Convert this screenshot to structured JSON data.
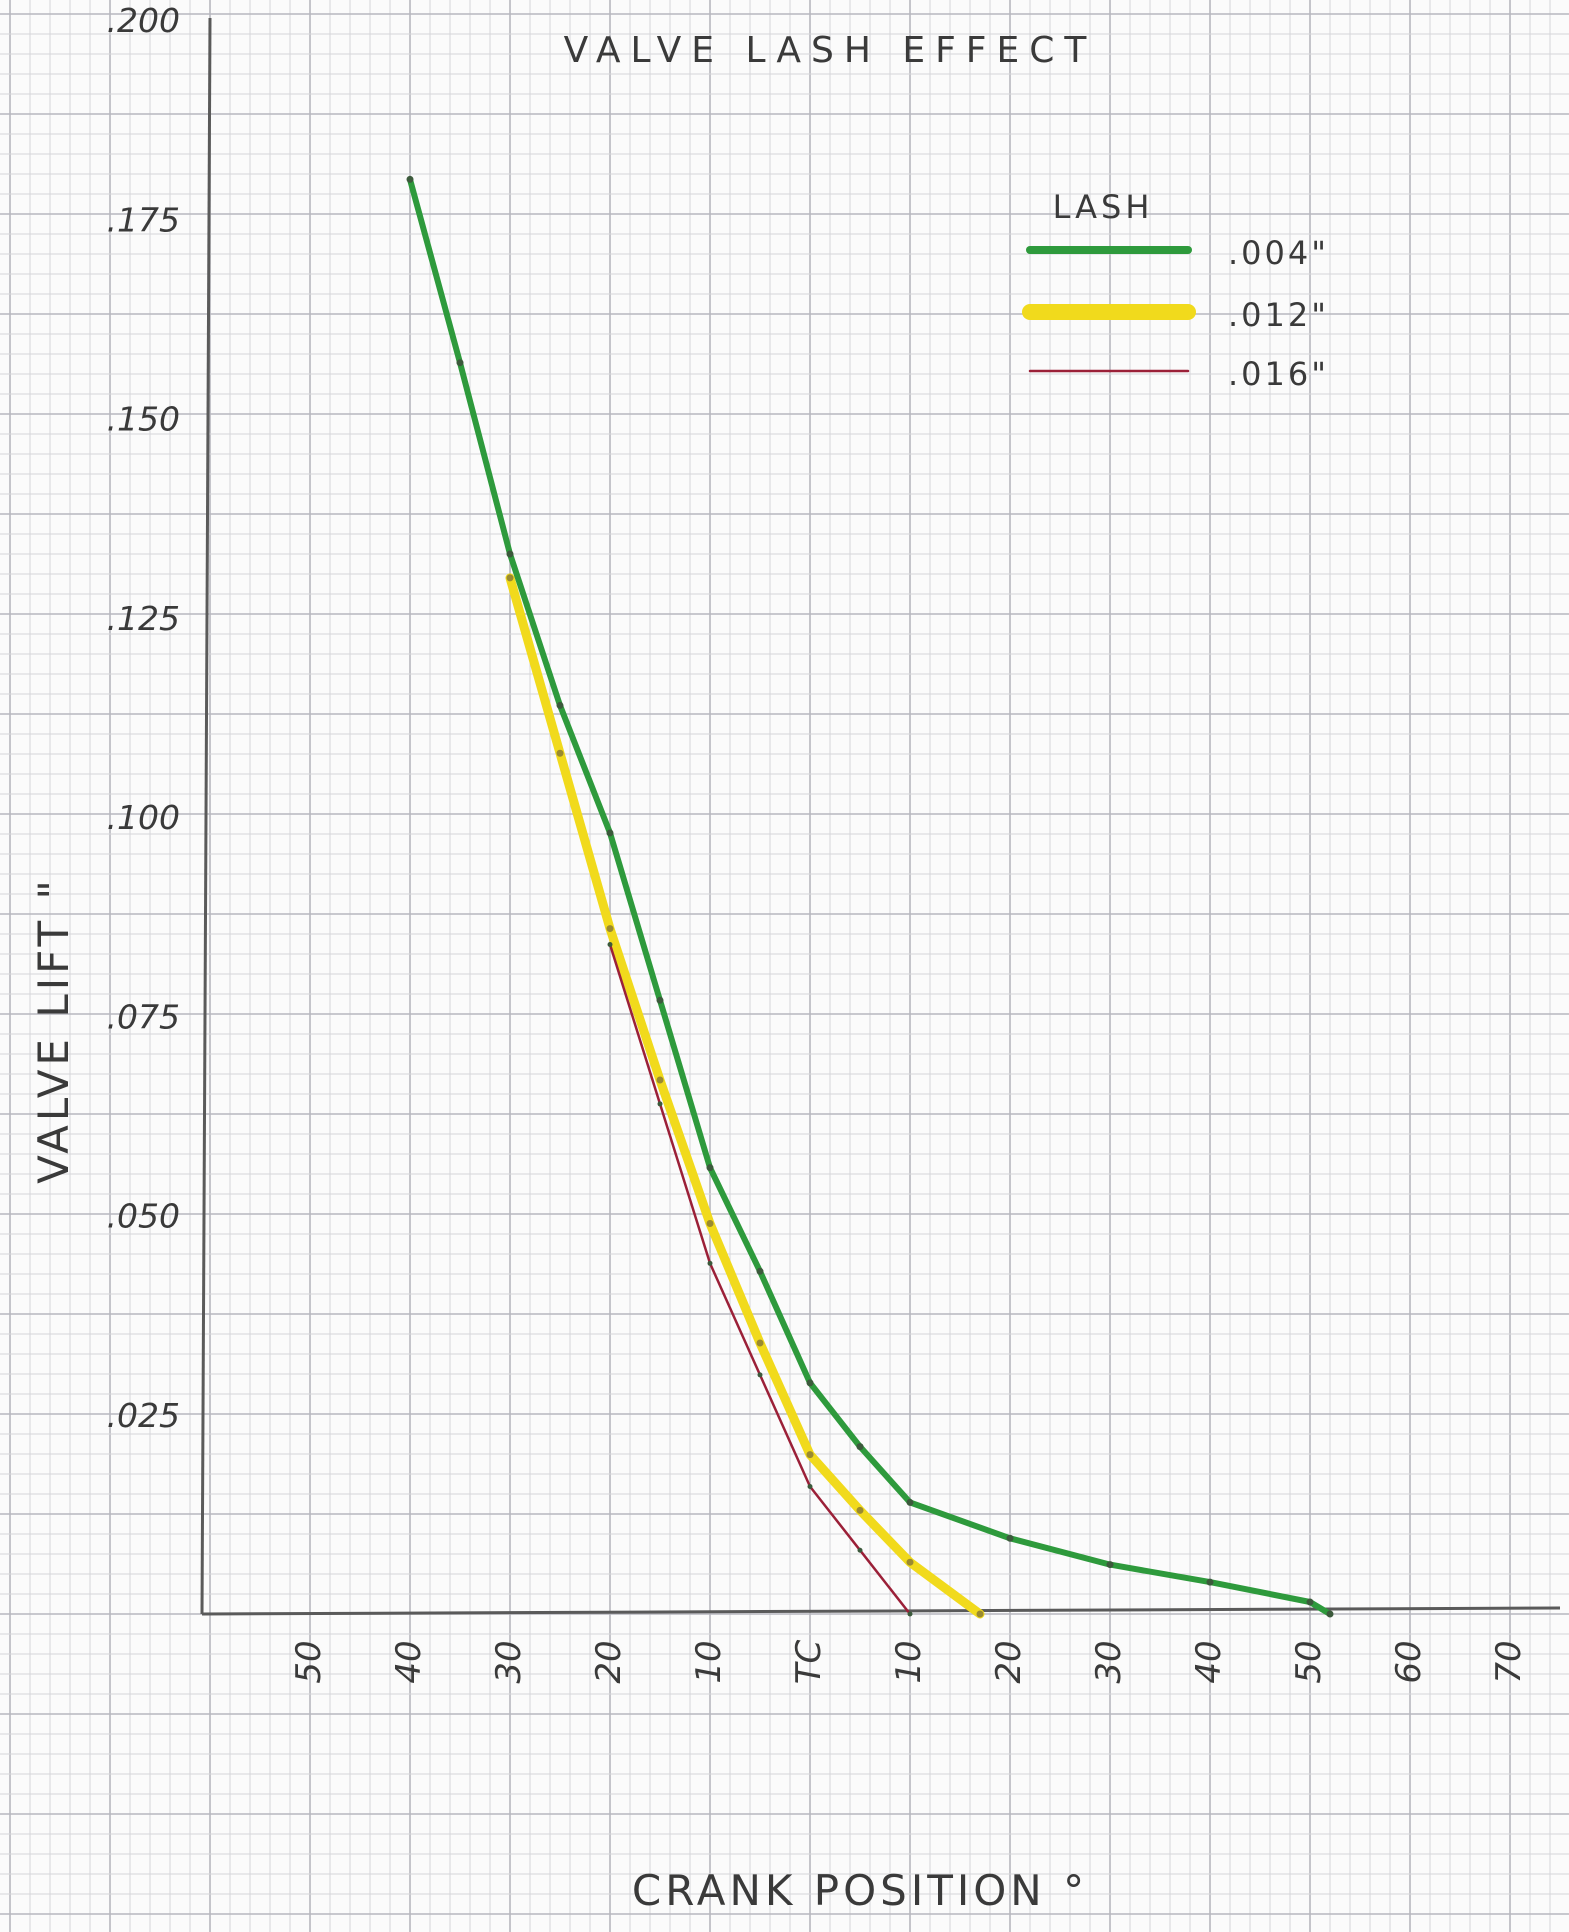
{
  "chart_data": {
    "type": "line",
    "title": "VALVE LASH EFFECT",
    "xlabel": "CRANK POSITION °",
    "ylabel": "VALVE LIFT \"",
    "x_tick_labels": [
      "50",
      "40",
      "30",
      "20",
      "10",
      "TC",
      "10",
      "20",
      "30",
      "40",
      "50",
      "60",
      "70"
    ],
    "y_tick_labels": [
      ".025",
      ".050",
      ".075",
      ".100",
      ".125",
      ".150",
      ".175",
      ".200"
    ],
    "x_tick_values": [
      -50,
      -40,
      -30,
      -20,
      -10,
      0,
      10,
      20,
      30,
      40,
      50,
      60,
      70
    ],
    "y_tick_values": [
      0.025,
      0.05,
      0.075,
      0.1,
      0.125,
      0.15,
      0.175,
      0.2
    ],
    "xlim": [
      -60,
      72
    ],
    "ylim": [
      0,
      0.2
    ],
    "grid": true,
    "legend": {
      "title": "LASH",
      "position": "top-right"
    },
    "series": [
      {
        "name": ".004\"",
        "color": "#2e9a3c",
        "points": [
          [
            -40,
            0.18
          ],
          [
            -35,
            0.157
          ],
          [
            -30,
            0.133
          ],
          [
            -25,
            0.114
          ],
          [
            -20,
            0.098
          ],
          [
            -15,
            0.077
          ],
          [
            -10,
            0.056
          ],
          [
            -5,
            0.043
          ],
          [
            0,
            0.029
          ],
          [
            5,
            0.021
          ],
          [
            10,
            0.014
          ],
          [
            20,
            0.0095
          ],
          [
            30,
            0.0062
          ],
          [
            40,
            0.004
          ],
          [
            50,
            0.0015
          ],
          [
            52,
            0.0
          ]
        ]
      },
      {
        "name": ".012\"",
        "color": "#f1da1c",
        "points": [
          [
            -30,
            0.13
          ],
          [
            -25,
            0.108
          ],
          [
            -20,
            0.086
          ],
          [
            -15,
            0.067
          ],
          [
            -10,
            0.049
          ],
          [
            -5,
            0.034
          ],
          [
            0,
            0.02
          ],
          [
            5,
            0.013
          ],
          [
            10,
            0.0065
          ],
          [
            17,
            0.0
          ]
        ]
      },
      {
        "name": ".016\"",
        "color": "#9b2038",
        "points": [
          [
            -20,
            0.084
          ],
          [
            -15,
            0.064
          ],
          [
            -10,
            0.044
          ],
          [
            -5,
            0.03
          ],
          [
            0,
            0.016
          ],
          [
            5,
            0.008
          ],
          [
            10,
            0.0
          ]
        ]
      }
    ]
  }
}
